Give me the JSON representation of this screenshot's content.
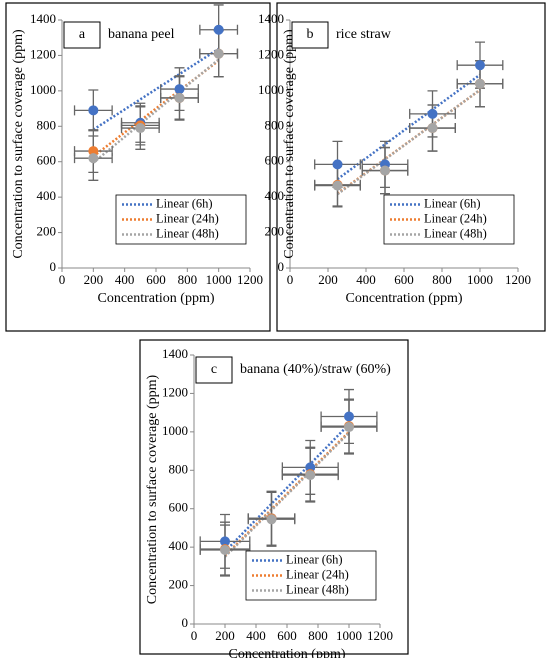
{
  "chart_data": [
    {
      "type": "scatter",
      "panel_label": "a",
      "annotation": "banana peel",
      "x_label": "Concentration (ppm)",
      "y_label": "Concentration to surface coverage (ppm)",
      "x": [
        200,
        500,
        750,
        1000
      ],
      "xlim": [
        0,
        1200
      ],
      "xticks": [
        0,
        200,
        400,
        600,
        800,
        1000,
        1200
      ],
      "ylim": [
        0,
        1400
      ],
      "yticks": [
        0,
        200,
        400,
        600,
        800,
        1000,
        1200,
        1400
      ],
      "legend": "lower right",
      "series": [
        {
          "name": "Linear (6h)",
          "color": "#4472c4",
          "values": [
            890,
            820,
            1010,
            1345
          ],
          "x_error": [
            120,
            120,
            120,
            120
          ],
          "y_error": [
            115,
            110,
            120,
            140
          ]
        },
        {
          "name": "Linear (24h)",
          "color": "#ed7d31",
          "values": [
            660,
            805,
            960,
            1210
          ],
          "x_error": [
            120,
            120,
            120,
            120
          ],
          "y_error": [
            120,
            110,
            120,
            130
          ]
        },
        {
          "name": "Linear (48h)",
          "color": "#a5a5a5",
          "values": [
            620,
            790,
            960,
            1210
          ],
          "x_error": [
            120,
            120,
            120,
            120
          ],
          "y_error": [
            125,
            120,
            125,
            130
          ]
        }
      ]
    },
    {
      "type": "scatter",
      "panel_label": "b",
      "annotation": "rice straw",
      "x_label": "Concentration (ppm)",
      "y_label": "Concentration to surface coverage (ppm)",
      "x": [
        250,
        500,
        750,
        1000
      ],
      "xlim": [
        0,
        1200
      ],
      "xticks": [
        0,
        200,
        400,
        600,
        800,
        1000,
        1200
      ],
      "ylim": [
        0,
        1400
      ],
      "yticks": [
        0,
        200,
        400,
        600,
        800,
        1000,
        1200,
        1400
      ],
      "legend": "lower right",
      "series": [
        {
          "name": "Linear (6h)",
          "color": "#4472c4",
          "values": [
            585,
            585,
            870,
            1145
          ],
          "x_error": [
            120,
            120,
            120,
            120
          ],
          "y_error": [
            130,
            130,
            130,
            130
          ]
        },
        {
          "name": "Linear (24h)",
          "color": "#ed7d31",
          "values": [
            470,
            550,
            790,
            1040
          ],
          "x_error": [
            120,
            120,
            120,
            120
          ],
          "y_error": [
            120,
            130,
            130,
            130
          ]
        },
        {
          "name": "Linear (48h)",
          "color": "#a5a5a5",
          "values": [
            465,
            550,
            790,
            1040
          ],
          "x_error": [
            120,
            120,
            120,
            120
          ],
          "y_error": [
            120,
            130,
            130,
            130
          ]
        }
      ]
    },
    {
      "type": "scatter",
      "panel_label": "c",
      "annotation": "banana (40%)/straw (60%)",
      "x_label": "Concentration (ppm)",
      "y_label": "Concentration to surface coverage (ppm)",
      "x": [
        200,
        500,
        750,
        1000
      ],
      "xlim": [
        0,
        1200
      ],
      "xticks": [
        0,
        200,
        400,
        600,
        800,
        1000,
        1200
      ],
      "ylim": [
        0,
        1400
      ],
      "yticks": [
        0,
        200,
        400,
        600,
        800,
        1000,
        1200,
        1400
      ],
      "legend": "lower right",
      "series": [
        {
          "name": "Linear (6h)",
          "color": "#4472c4",
          "values": [
            430,
            550,
            815,
            1080
          ],
          "x_error": [
            160,
            150,
            180,
            180
          ],
          "y_error": [
            140,
            140,
            140,
            140
          ]
        },
        {
          "name": "Linear (24h)",
          "color": "#ed7d31",
          "values": [
            390,
            550,
            780,
            1030
          ],
          "x_error": [
            160,
            150,
            180,
            180
          ],
          "y_error": [
            140,
            140,
            140,
            140
          ]
        },
        {
          "name": "Linear (48h)",
          "color": "#a5a5a5",
          "values": [
            385,
            545,
            775,
            1025
          ],
          "x_error": [
            160,
            150,
            180,
            180
          ],
          "y_error": [
            130,
            140,
            140,
            140
          ]
        }
      ]
    }
  ]
}
